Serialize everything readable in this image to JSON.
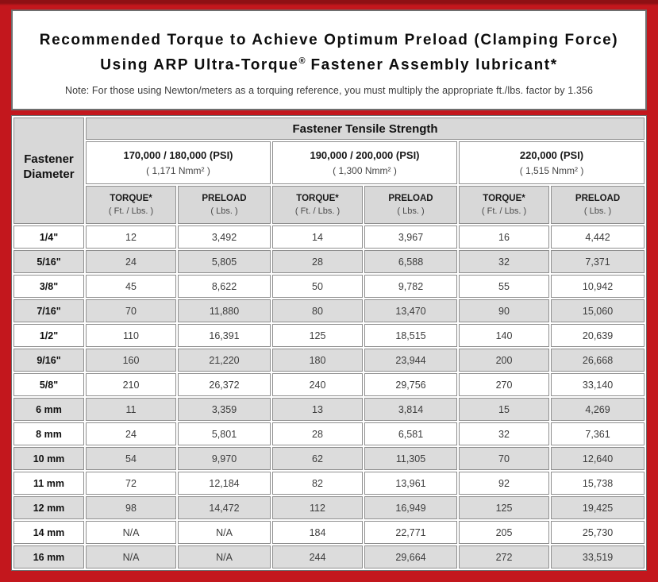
{
  "title": {
    "line1": "Recommended Torque to Achieve Optimum Preload (Clamping Force)",
    "line2_prefix": "Using ARP Ultra-Torque",
    "line2_reg": "®",
    "line2_suffix": " Fastener Assembly lubricant*",
    "note": "Note: For those using Newton/meters as a torquing reference, you must multiply the appropriate ft./lbs. factor by 1.356"
  },
  "table": {
    "corner_line1": "Fastener",
    "corner_line2": "Diameter",
    "tensile_strength_header": "Fastener Tensile Strength",
    "strength_groups": [
      {
        "psi": "170,000 / 180,000 (PSI)",
        "nmm2": "( 1,171 Nmm² )"
      },
      {
        "psi": "190,000 / 200,000 (PSI)",
        "nmm2": "( 1,300 Nmm² )"
      },
      {
        "psi": "220,000 (PSI)",
        "nmm2": "( 1,515 Nmm² )"
      }
    ],
    "column_headers": [
      {
        "label": "TORQUE*",
        "unit": "( Ft. / Lbs. )"
      },
      {
        "label": "PRELOAD",
        "unit": "( Lbs. )"
      },
      {
        "label": "TORQUE*",
        "unit": "( Ft. / Lbs. )"
      },
      {
        "label": "PRELOAD",
        "unit": "( Lbs. )"
      },
      {
        "label": "TORQUE*",
        "unit": "( Ft. / Lbs. )"
      },
      {
        "label": "PRELOAD",
        "unit": "( Lbs. )"
      }
    ],
    "rows": [
      {
        "diameter": "1/4\"",
        "values": [
          "12",
          "3,492",
          "14",
          "3,967",
          "16",
          "4,442"
        ]
      },
      {
        "diameter": "5/16\"",
        "values": [
          "24",
          "5,805",
          "28",
          "6,588",
          "32",
          "7,371"
        ]
      },
      {
        "diameter": "3/8\"",
        "values": [
          "45",
          "8,622",
          "50",
          "9,782",
          "55",
          "10,942"
        ]
      },
      {
        "diameter": "7/16\"",
        "values": [
          "70",
          "11,880",
          "80",
          "13,470",
          "90",
          "15,060"
        ]
      },
      {
        "diameter": "1/2\"",
        "values": [
          "110",
          "16,391",
          "125",
          "18,515",
          "140",
          "20,639"
        ]
      },
      {
        "diameter": "9/16\"",
        "values": [
          "160",
          "21,220",
          "180",
          "23,944",
          "200",
          "26,668"
        ]
      },
      {
        "diameter": "5/8\"",
        "values": [
          "210",
          "26,372",
          "240",
          "29,756",
          "270",
          "33,140"
        ]
      },
      {
        "diameter": "6 mm",
        "values": [
          "11",
          "3,359",
          "13",
          "3,814",
          "15",
          "4,269"
        ]
      },
      {
        "diameter": "8 mm",
        "values": [
          "24",
          "5,801",
          "28",
          "6,581",
          "32",
          "7,361"
        ]
      },
      {
        "diameter": "10 mm",
        "values": [
          "54",
          "9,970",
          "62",
          "11,305",
          "70",
          "12,640"
        ]
      },
      {
        "diameter": "11 mm",
        "values": [
          "72",
          "12,184",
          "82",
          "13,961",
          "92",
          "15,738"
        ]
      },
      {
        "diameter": "12 mm",
        "values": [
          "98",
          "14,472",
          "112",
          "16,949",
          "125",
          "19,425"
        ]
      },
      {
        "diameter": "14 mm",
        "values": [
          "N/A",
          "N/A",
          "184",
          "22,771",
          "205",
          "25,730"
        ]
      },
      {
        "diameter": "16 mm",
        "values": [
          "N/A",
          "N/A",
          "244",
          "29,664",
          "272",
          "33,519"
        ]
      }
    ]
  },
  "colors": {
    "frame_red": "#c3171d",
    "frame_red_dark_edge": "#8e1014",
    "header_gray": "#d8d8d8",
    "alt_row_gray": "#dcdcdc",
    "cell_border_gray": "#8f8f8f",
    "box_border_gray": "#6e6e6e"
  }
}
